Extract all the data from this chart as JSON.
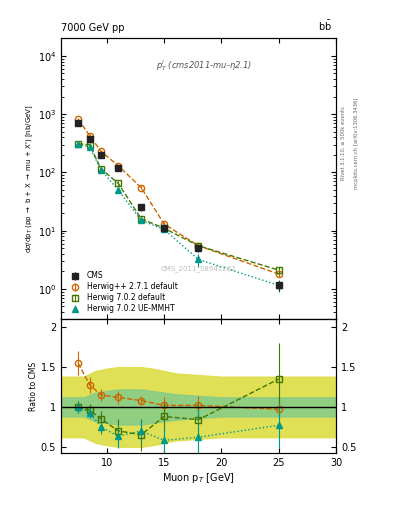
{
  "title_left": "7000 GeV pp",
  "title_right": "b$\\bar{b}$",
  "annotation": "p$^l_T$ (cms2011-mu-η2.1)",
  "watermark": "CMS_2011_S8941262",
  "rivet_label": "Rivet 3.1.10, ≥ 500k events",
  "arxiv_label": "mcplots.cern.ch [arXiv:1306.3436]",
  "ylabel_main": "dσ/dp$_T$ (pp → b + X → mu + X') [nb/GeV]",
  "ylabel_ratio": "Ratio to CMS",
  "xlabel": "Muon p$_T$ [GeV]",
  "xlim": [
    6,
    30
  ],
  "ylim_main": [
    0.3,
    20000
  ],
  "ylim_ratio": [
    0.42,
    2.1
  ],
  "cms_x": [
    7.5,
    8.5,
    9.5,
    11.0,
    13.0,
    15.0,
    18.0,
    25.0
  ],
  "cms_y": [
    700,
    380,
    200,
    120,
    25,
    11,
    5.0,
    1.15
  ],
  "cms_yerr_lo": [
    60,
    35,
    18,
    12,
    3,
    1.5,
    0.7,
    0.22
  ],
  "cms_yerr_hi": [
    60,
    35,
    18,
    12,
    3,
    1.5,
    0.7,
    0.22
  ],
  "herwig1_x": [
    7.5,
    8.5,
    9.5,
    11.0,
    13.0,
    15.0,
    18.0,
    25.0
  ],
  "herwig1_y": [
    820,
    430,
    230,
    130,
    55,
    13,
    5.5,
    1.8
  ],
  "herwig1_yerr": [
    40,
    22,
    12,
    8,
    3,
    1.0,
    0.5,
    0.2
  ],
  "herwig2_x": [
    7.5,
    8.5,
    9.5,
    11.0,
    13.0,
    15.0,
    18.0,
    25.0
  ],
  "herwig2_y": [
    310,
    300,
    115,
    65,
    16,
    11,
    5.5,
    2.1
  ],
  "herwig2_yerr": [
    20,
    20,
    8,
    5,
    1.5,
    1.0,
    0.5,
    0.3
  ],
  "herwig3_x": [
    7.5,
    8.5,
    9.5,
    11.0,
    13.0,
    15.0,
    18.0,
    25.0
  ],
  "herwig3_y": [
    305,
    275,
    110,
    50,
    15,
    10.5,
    3.2,
    1.15
  ],
  "herwig3_yerr_lo": [
    20,
    18,
    8,
    5,
    1.5,
    1.2,
    0.8,
    0.25
  ],
  "herwig3_yerr_hi": [
    20,
    18,
    8,
    5,
    1.5,
    1.2,
    0.8,
    0.25
  ],
  "ratio_herwig1": [
    1.55,
    1.28,
    1.15,
    1.12,
    1.08,
    1.02,
    1.02,
    0.97
  ],
  "ratio_herwig1_err": [
    0.15,
    0.1,
    0.08,
    0.08,
    0.06,
    0.1,
    0.12,
    0.15
  ],
  "ratio_herwig2": [
    1.0,
    0.96,
    0.85,
    0.7,
    0.65,
    0.88,
    0.84,
    1.35
  ],
  "ratio_herwig2_err_lo": [
    0.08,
    0.08,
    0.1,
    0.15,
    0.2,
    0.18,
    0.22,
    0.45
  ],
  "ratio_herwig2_err_hi": [
    0.08,
    0.08,
    0.1,
    0.15,
    0.2,
    0.18,
    0.22,
    0.45
  ],
  "ratio_herwig3": [
    1.0,
    0.93,
    0.75,
    0.63,
    0.7,
    0.58,
    0.62,
    0.77
  ],
  "ratio_herwig3_err_lo": [
    0.08,
    0.07,
    0.09,
    0.14,
    0.14,
    0.17,
    0.35,
    0.28
  ],
  "ratio_herwig3_err_hi": [
    0.08,
    0.07,
    0.09,
    0.14,
    0.14,
    0.17,
    0.35,
    0.28
  ],
  "cms_band_x": [
    6,
    7,
    8,
    9,
    10,
    11,
    12,
    13,
    14,
    15,
    16,
    18,
    20,
    25,
    30
  ],
  "cms_band_green_lo": [
    0.88,
    0.88,
    0.88,
    0.82,
    0.8,
    0.78,
    0.78,
    0.78,
    0.8,
    0.82,
    0.84,
    0.86,
    0.88,
    0.88,
    0.88
  ],
  "cms_band_green_hi": [
    1.12,
    1.12,
    1.12,
    1.18,
    1.2,
    1.22,
    1.22,
    1.22,
    1.2,
    1.18,
    1.16,
    1.14,
    1.12,
    1.12,
    1.12
  ],
  "cms_band_yellow_lo": [
    0.62,
    0.62,
    0.62,
    0.55,
    0.52,
    0.5,
    0.5,
    0.5,
    0.52,
    0.55,
    0.58,
    0.6,
    0.62,
    0.62,
    0.62
  ],
  "cms_band_yellow_hi": [
    1.38,
    1.38,
    1.38,
    1.45,
    1.48,
    1.5,
    1.5,
    1.5,
    1.48,
    1.45,
    1.42,
    1.4,
    1.38,
    1.38,
    1.38
  ],
  "color_cms": "#222222",
  "color_herwig1": "#cc6600",
  "color_herwig2": "#447700",
  "color_herwig3": "#009988",
  "color_green_band": "#88cc88",
  "color_yellow_band": "#dddd44",
  "background_color": "#ffffff"
}
